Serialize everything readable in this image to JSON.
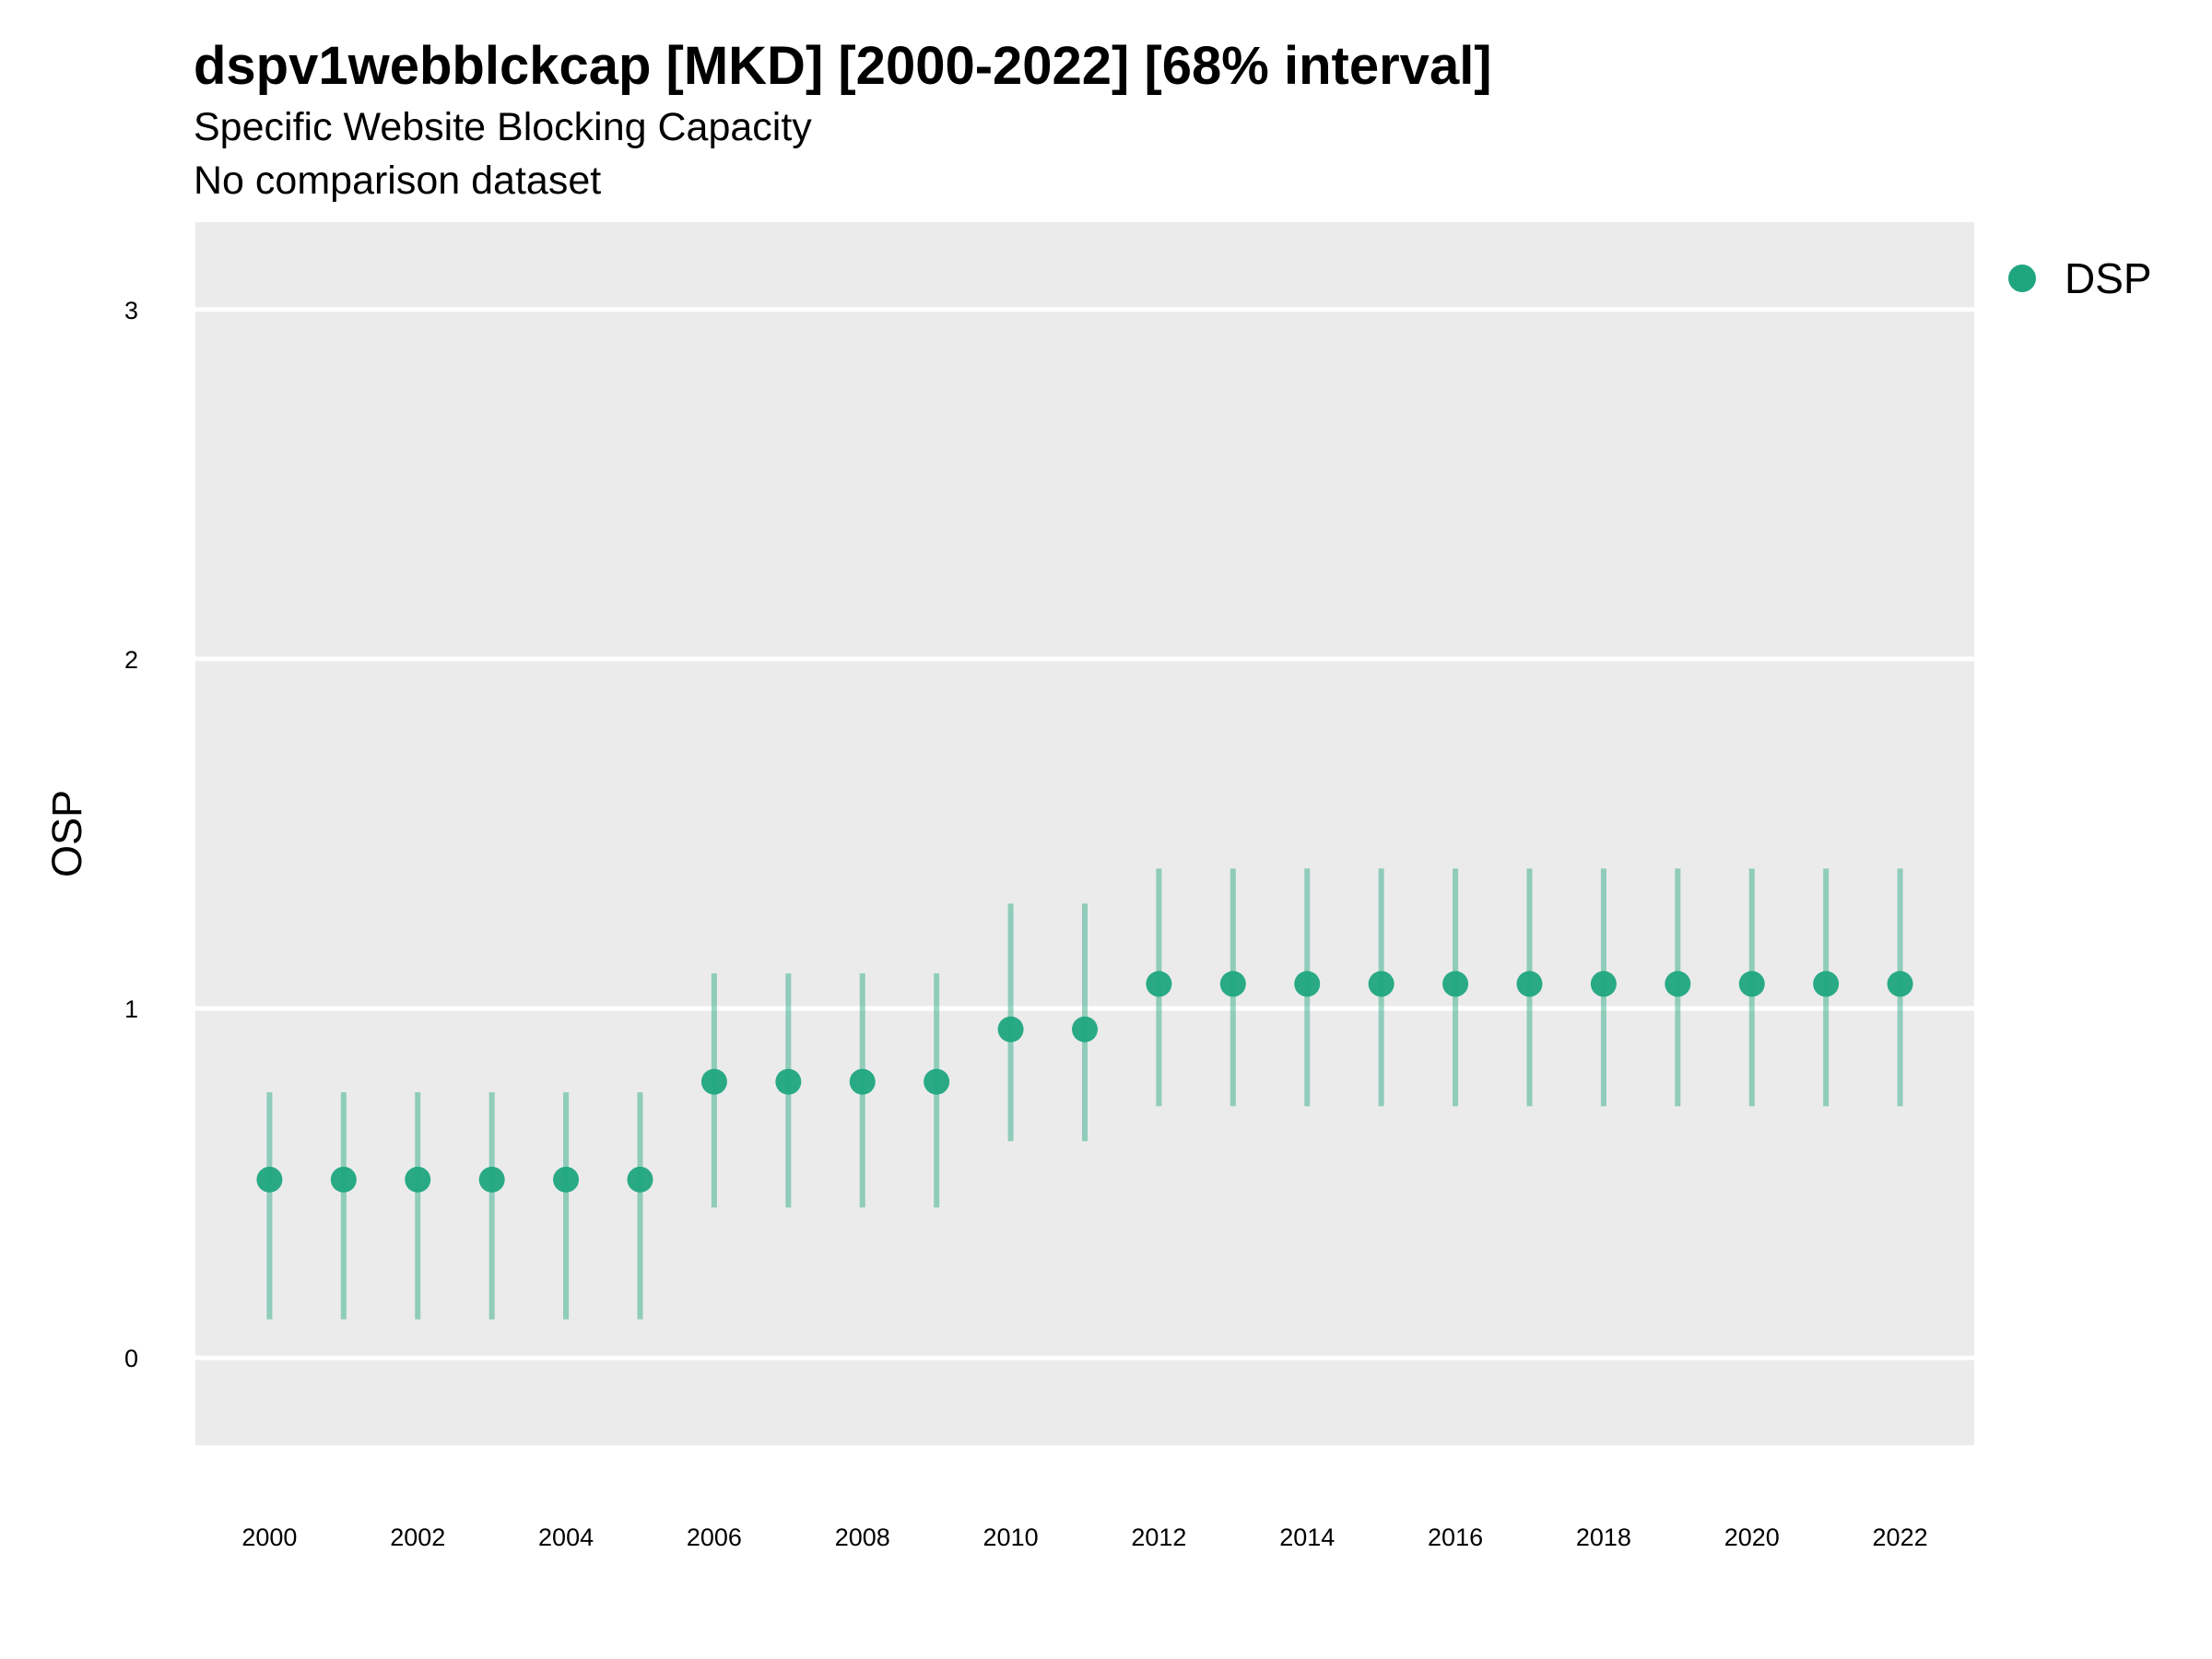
{
  "chart_data": {
    "type": "scatter",
    "title": "dspv1webblckcap [MKD] [2000-2022] [68% interval]",
    "subtitle": "Specific Website Blocking Capacity",
    "caption": "No comparison dataset",
    "xlabel": "",
    "ylabel": "OSP",
    "xlim": [
      1999,
      2023
    ],
    "ylim": [
      -0.25,
      3.25
    ],
    "x_ticks": [
      2000,
      2002,
      2004,
      2006,
      2008,
      2010,
      2012,
      2014,
      2016,
      2018,
      2020,
      2022
    ],
    "y_ticks": [
      0,
      1,
      2,
      3
    ],
    "grid": true,
    "legend": {
      "position": "right",
      "entries": [
        "DSP"
      ]
    },
    "series": [
      {
        "name": "DSP",
        "color": "#1fa67f",
        "x": [
          2000,
          2001,
          2002,
          2003,
          2004,
          2005,
          2006,
          2007,
          2008,
          2009,
          2010,
          2011,
          2012,
          2013,
          2014,
          2015,
          2016,
          2017,
          2018,
          2019,
          2020,
          2021,
          2022
        ],
        "y": [
          0.51,
          0.51,
          0.51,
          0.51,
          0.51,
          0.51,
          0.79,
          0.79,
          0.79,
          0.79,
          0.94,
          0.94,
          1.07,
          1.07,
          1.07,
          1.07,
          1.07,
          1.07,
          1.07,
          1.07,
          1.07,
          1.07,
          1.07
        ],
        "lower": [
          0.11,
          0.11,
          0.11,
          0.11,
          0.11,
          0.11,
          0.43,
          0.43,
          0.43,
          0.43,
          0.62,
          0.62,
          0.72,
          0.72,
          0.72,
          0.72,
          0.72,
          0.72,
          0.72,
          0.72,
          0.72,
          0.72,
          0.72
        ],
        "upper": [
          0.76,
          0.76,
          0.76,
          0.76,
          0.76,
          0.76,
          1.1,
          1.1,
          1.1,
          1.1,
          1.3,
          1.3,
          1.4,
          1.4,
          1.4,
          1.4,
          1.4,
          1.4,
          1.4,
          1.4,
          1.4,
          1.4,
          1.4
        ]
      }
    ]
  }
}
